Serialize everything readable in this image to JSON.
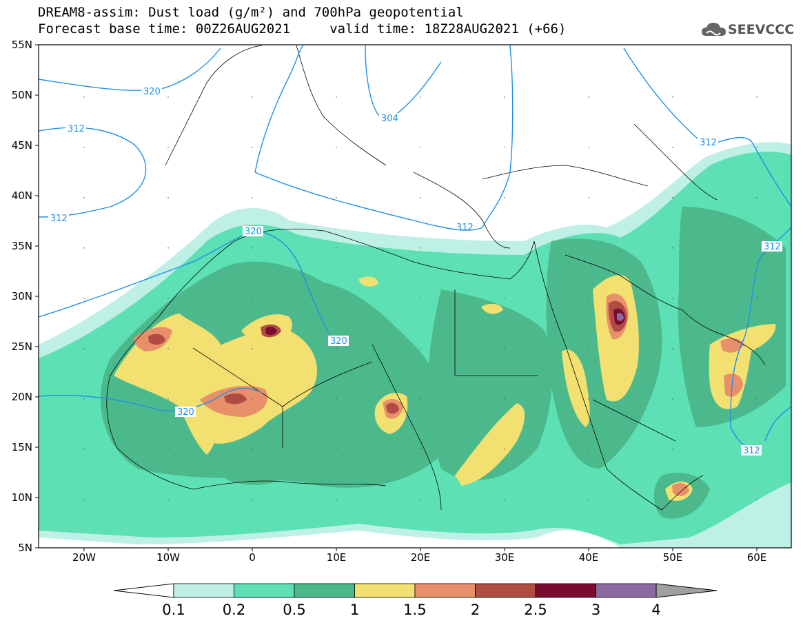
{
  "title_line1": "DREAM8-assim: Dust load (g/m²) and 700hPa geopotential",
  "title_line2": "Forecast base time: 00Z26AUG2021     valid time: 18Z28AUG2021 (+66)",
  "logo_text": "SEEVCCC",
  "colors": {
    "ocean_land": "#ffffff",
    "contour": "#1e90e6",
    "border": "#000000",
    "levels": [
      "#bff0e6",
      "#5ce0b4",
      "#4cb98c",
      "#f2e070",
      "#e8906a",
      "#b04c42",
      "#7a0c30",
      "#8a6aa0",
      "#a0a0a0"
    ]
  },
  "axes": {
    "lon_ticks": [
      "20W",
      "10W",
      "0",
      "10E",
      "20E",
      "30E",
      "40E",
      "50E",
      "60E"
    ],
    "lat_ticks": [
      "55N",
      "50N",
      "45N",
      "40N",
      "35N",
      "30N",
      "25N",
      "20N",
      "15N",
      "10N",
      "5N"
    ]
  },
  "colorbar": {
    "labels": [
      "0.1",
      "0.2",
      "0.5",
      "1",
      "1.5",
      "2",
      "2.5",
      "3",
      "4"
    ]
  },
  "contour_labels": [
    "320",
    "312",
    "312",
    "304",
    "312",
    "312",
    "320",
    "320",
    "320",
    "312",
    "312"
  ]
}
